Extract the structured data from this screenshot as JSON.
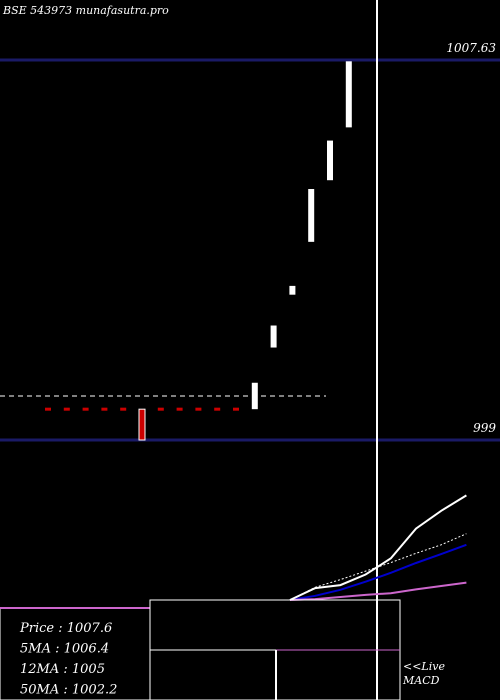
{
  "header": {
    "ticker": "BSE 543973 munafasutra.pro"
  },
  "chart_data": {
    "type": "candlestick",
    "title": "",
    "price_levels": [
      {
        "label": "1007.63",
        "value": 1007.63
      },
      {
        "label": "999",
        "value": 999
      }
    ],
    "candles": [
      {
        "i": 0,
        "open": 999.7,
        "close": 999.7,
        "high": 999.7,
        "low": 999.7
      },
      {
        "i": 1,
        "open": 999.7,
        "close": 999.7,
        "high": 999.7,
        "low": 999.7
      },
      {
        "i": 2,
        "open": 999.7,
        "close": 999.7,
        "high": 999.7,
        "low": 999.7
      },
      {
        "i": 3,
        "open": 999.7,
        "close": 999.7,
        "high": 999.7,
        "low": 999.7
      },
      {
        "i": 4,
        "open": 999.7,
        "close": 999.7,
        "high": 999.7,
        "low": 999.7
      },
      {
        "i": 5,
        "open": 999.7,
        "close": 999.0,
        "high": 999.7,
        "low": 999.0
      },
      {
        "i": 6,
        "open": 999.7,
        "close": 999.7,
        "high": 999.7,
        "low": 999.7
      },
      {
        "i": 7,
        "open": 999.7,
        "close": 999.7,
        "high": 999.7,
        "low": 999.7
      },
      {
        "i": 8,
        "open": 999.7,
        "close": 999.7,
        "high": 999.7,
        "low": 999.7
      },
      {
        "i": 9,
        "open": 999.7,
        "close": 999.7,
        "high": 999.7,
        "low": 999.7
      },
      {
        "i": 10,
        "open": 999.7,
        "close": 999.7,
        "high": 999.7,
        "low": 999.7
      },
      {
        "i": 11,
        "open": 999.7,
        "close": 1000.3,
        "high": 1000.3,
        "low": 999.7
      },
      {
        "i": 12,
        "open": 1001.1,
        "close": 1001.6,
        "high": 1001.6,
        "low": 1001.1
      },
      {
        "i": 13,
        "open": 1002.3,
        "close": 1002.5,
        "high": 1002.5,
        "low": 1002.3
      },
      {
        "i": 14,
        "open": 1003.5,
        "close": 1004.7,
        "high": 1004.7,
        "low": 1003.5
      },
      {
        "i": 15,
        "open": 1004.9,
        "close": 1005.8,
        "high": 1005.8,
        "low": 1004.9
      },
      {
        "i": 16,
        "open": 1006.1,
        "close": 1007.6,
        "high": 1007.63,
        "low": 1006.1
      }
    ],
    "stats": [
      {
        "label": "Price",
        "value": "1007.6"
      },
      {
        "label": "5MA",
        "value": "1006.4"
      },
      {
        "label": "12MA",
        "value": "1005"
      },
      {
        "label": "50MA",
        "value": "1002.2"
      }
    ],
    "macd_label_line1": "<<Live",
    "macd_label_line2": "MACD",
    "macd": {
      "white": [
        [
          0,
          0
        ],
        [
          1,
          0.28
        ],
        [
          2,
          0.35
        ],
        [
          3,
          0.6
        ],
        [
          4,
          0.98
        ],
        [
          5,
          1.68
        ],
        [
          6,
          2.1
        ],
        [
          7,
          2.46
        ]
      ],
      "blue": [
        [
          0,
          0
        ],
        [
          1,
          0.1
        ],
        [
          2,
          0.24
        ],
        [
          3,
          0.43
        ],
        [
          4,
          0.64
        ],
        [
          5,
          0.87
        ],
        [
          6,
          1.08
        ],
        [
          7,
          1.3
        ]
      ],
      "magenta": [
        [
          0,
          0
        ],
        [
          1,
          0.02
        ],
        [
          2,
          0.07
        ],
        [
          3,
          0.12
        ],
        [
          4,
          0.16
        ],
        [
          5,
          0.25
        ],
        [
          6,
          0.33
        ],
        [
          7,
          0.41
        ]
      ],
      "dotted": [
        [
          0,
          0
        ],
        [
          1,
          0.3
        ],
        [
          2,
          0.48
        ],
        [
          3,
          0.68
        ],
        [
          4,
          0.88
        ],
        [
          5,
          1.1
        ],
        [
          6,
          1.3
        ],
        [
          7,
          1.56
        ]
      ]
    },
    "colors": {
      "background": "#000000",
      "candle_up": "#ffffff",
      "candle_down": "#cc0000",
      "level_line": "#1a1a66",
      "dashed_line": "#ffffff",
      "macd_blue": "#0000cc",
      "macd_magenta": "#cc66cc",
      "stats_box": "#000000"
    }
  }
}
